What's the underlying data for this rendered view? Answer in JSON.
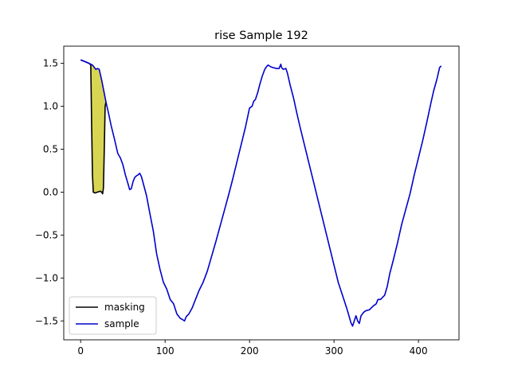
{
  "chart_data": {
    "type": "line",
    "title": "rise Sample 192",
    "xlabel": "",
    "ylabel": "",
    "xlim": [
      -20,
      448
    ],
    "ylim": [
      -1.72,
      1.7
    ],
    "xticks": [
      0,
      100,
      200,
      300,
      400
    ],
    "yticks": [
      -1.5,
      -1.0,
      -0.5,
      0.0,
      0.5,
      1.0,
      1.5
    ],
    "ytick_labels": [
      "−1.5",
      "−1.0",
      "−0.5",
      "0.0",
      "0.5",
      "1.0",
      "1.5"
    ],
    "xtick_labels": [
      "0",
      "100",
      "200",
      "300",
      "400"
    ],
    "grid": false,
    "legend_position": "lower-left",
    "fill_color": "#d4d040",
    "series": [
      {
        "name": "masking",
        "color": "#000000",
        "x": [
          0,
          5,
          10,
          12,
          13,
          14,
          15,
          17,
          20,
          23,
          25,
          26,
          27,
          28,
          29,
          30
        ],
        "y": [
          1.54,
          1.52,
          1.5,
          1.48,
          0.8,
          0.2,
          0.0,
          -0.01,
          0.0,
          0.01,
          0.0,
          -0.02,
          0.05,
          0.5,
          1.0,
          1.05
        ]
      },
      {
        "name": "sample",
        "color": "#0000cc",
        "x": [
          0,
          5,
          10,
          12,
          14,
          18,
          20,
          22,
          25,
          28,
          30,
          33,
          36,
          40,
          44,
          47,
          50,
          53,
          56,
          58,
          60,
          62,
          64,
          66,
          68,
          70,
          72,
          75,
          78,
          82,
          86,
          90,
          94,
          98,
          102,
          106,
          110,
          114,
          118,
          120,
          123,
          125,
          128,
          132,
          136,
          140,
          145,
          150,
          155,
          160,
          165,
          170,
          175,
          180,
          185,
          190,
          195,
          200,
          203,
          205,
          207,
          210,
          212,
          215,
          218,
          220,
          222,
          225,
          228,
          232,
          235,
          237,
          238,
          240,
          243,
          245,
          248,
          252,
          256,
          260,
          265,
          270,
          275,
          280,
          285,
          290,
          295,
          300,
          305,
          310,
          315,
          318,
          320,
          322,
          324,
          326,
          328,
          330,
          332,
          335,
          338,
          342,
          346,
          350,
          352,
          355,
          358,
          360,
          363,
          366,
          370,
          375,
          380,
          385,
          390,
          395,
          400,
          405,
          410,
          415,
          418,
          422,
          425,
          427
        ],
        "y": [
          1.54,
          1.52,
          1.5,
          1.49,
          1.48,
          1.43,
          1.44,
          1.43,
          1.3,
          1.15,
          1.05,
          0.92,
          0.78,
          0.62,
          0.45,
          0.4,
          0.32,
          0.2,
          0.1,
          0.03,
          0.04,
          0.12,
          0.17,
          0.19,
          0.2,
          0.22,
          0.18,
          0.07,
          -0.04,
          -0.25,
          -0.45,
          -0.72,
          -0.9,
          -1.05,
          -1.13,
          -1.25,
          -1.3,
          -1.42,
          -1.47,
          -1.48,
          -1.5,
          -1.45,
          -1.42,
          -1.35,
          -1.25,
          -1.15,
          -1.05,
          -0.92,
          -0.75,
          -0.58,
          -0.4,
          -0.22,
          -0.04,
          0.15,
          0.35,
          0.55,
          0.75,
          0.98,
          1.0,
          1.06,
          1.08,
          1.17,
          1.25,
          1.35,
          1.43,
          1.46,
          1.48,
          1.46,
          1.45,
          1.44,
          1.44,
          1.49,
          1.45,
          1.43,
          1.44,
          1.38,
          1.25,
          1.1,
          0.92,
          0.75,
          0.55,
          0.35,
          0.15,
          -0.05,
          -0.25,
          -0.45,
          -0.65,
          -0.85,
          -1.05,
          -1.2,
          -1.35,
          -1.45,
          -1.52,
          -1.56,
          -1.5,
          -1.44,
          -1.5,
          -1.53,
          -1.44,
          -1.4,
          -1.38,
          -1.37,
          -1.33,
          -1.3,
          -1.25,
          -1.25,
          -1.22,
          -1.2,
          -1.1,
          -0.95,
          -0.8,
          -0.6,
          -0.38,
          -0.2,
          -0.02,
          0.2,
          0.4,
          0.6,
          0.82,
          1.05,
          1.18,
          1.32,
          1.45,
          1.47
        ]
      }
    ]
  }
}
